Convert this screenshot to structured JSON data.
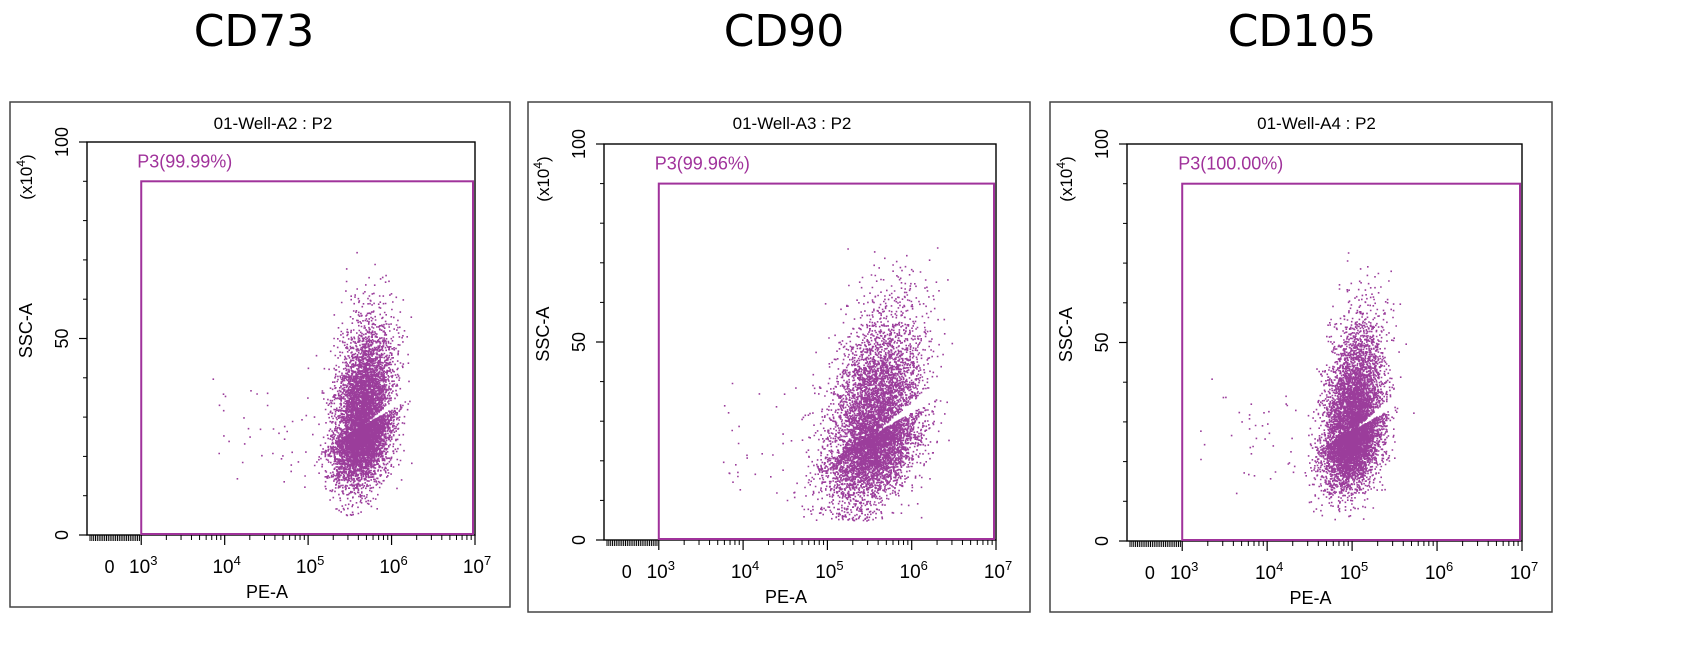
{
  "panels": [
    {
      "title": "CD73",
      "plot_title": "01-Well-A2 : P2",
      "gate_label": "P3(99.99%)"
    },
    {
      "title": "CD90",
      "plot_title": "01-Well-A3 : P2",
      "gate_label": "P3(99.96%)"
    },
    {
      "title": "CD105",
      "plot_title": "01-Well-A4 : P2",
      "gate_label": "P3(100.00%)"
    }
  ],
  "colors": {
    "points": "#9b3d9b",
    "gate": "#a0329b",
    "frame": "#444444"
  },
  "chart_data": [
    {
      "type": "scatter",
      "title": "CD73",
      "plot_title": "01-Well-A2 : P2",
      "xlabel": "PE-A",
      "ylabel": "SSC-A",
      "y_unit": "(x10^4)",
      "x_scale": "biexponential",
      "x_ticks": [
        "0",
        "10^3",
        "10^4",
        "10^5",
        "10^6",
        "10^7"
      ],
      "y_ticks": [
        0,
        50,
        100
      ],
      "ylim": [
        0,
        100
      ],
      "gate": {
        "name": "P3",
        "percent": 99.99,
        "x_range": [
          "10^3",
          "10^7"
        ],
        "y_range": [
          0,
          90
        ]
      },
      "population": {
        "center_log10_x": 5.65,
        "center_y": 28,
        "log10_x_range": [
          5.0,
          6.35
        ],
        "y_range": [
          5,
          72
        ],
        "shape": "ellipse tilted upward to the right"
      }
    },
    {
      "type": "scatter",
      "title": "CD90",
      "plot_title": "01-Well-A3 : P2",
      "xlabel": "PE-A",
      "ylabel": "SSC-A",
      "y_unit": "(x10^4)",
      "x_scale": "biexponential",
      "x_ticks": [
        "0",
        "10^3",
        "10^4",
        "10^5",
        "10^6",
        "10^7"
      ],
      "y_ticks": [
        0,
        50,
        100
      ],
      "ylim": [
        0,
        100
      ],
      "gate": {
        "name": "P3",
        "percent": 99.96,
        "x_range": [
          "10^3",
          "10^7"
        ],
        "y_range": [
          0,
          90
        ]
      },
      "population": {
        "center_log10_x": 5.55,
        "center_y": 27,
        "log10_x_range": [
          4.8,
          6.6
        ],
        "y_range": [
          6,
          73
        ],
        "shape": "broad ellipse tilted upward to the right"
      }
    },
    {
      "type": "scatter",
      "title": "CD105",
      "plot_title": "01-Well-A4 : P2",
      "xlabel": "PE-A",
      "ylabel": "SSC-A",
      "y_unit": "(x10^4)",
      "x_scale": "biexponential",
      "x_ticks": [
        "0",
        "10^3",
        "10^4",
        "10^5",
        "10^6",
        "10^7"
      ],
      "y_ticks": [
        0,
        50,
        100
      ],
      "ylim": [
        0,
        100
      ],
      "gate": {
        "name": "P3",
        "percent": 100.0,
        "x_range": [
          "10^3",
          "10^7"
        ],
        "y_range": [
          0,
          90
        ]
      },
      "population": {
        "center_log10_x": 5.0,
        "center_y": 28,
        "log10_x_range": [
          4.3,
          5.5
        ],
        "y_range": [
          6,
          70
        ],
        "shape": "ellipse tilted upward to the right"
      }
    }
  ]
}
